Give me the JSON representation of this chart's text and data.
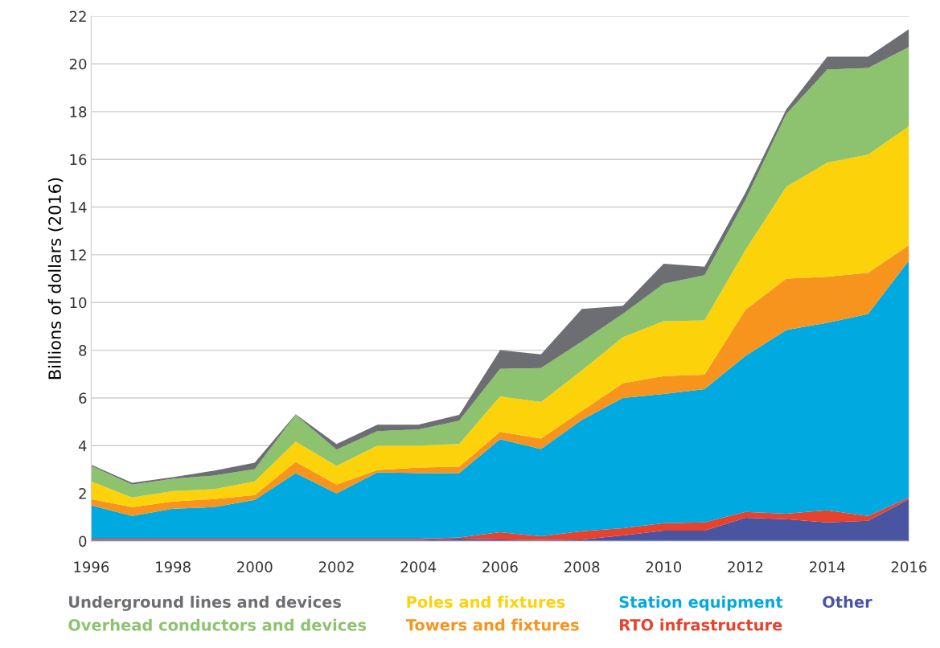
{
  "chart_data": {
    "type": "area",
    "stacked": true,
    "ylabel": "Billions of dollars (2016)",
    "x": [
      1996,
      1997,
      1998,
      1999,
      2000,
      2001,
      2002,
      2003,
      2004,
      2005,
      2006,
      2007,
      2008,
      2009,
      2010,
      2011,
      2012,
      2013,
      2014,
      2015,
      2016
    ],
    "xlim": [
      1996,
      2016
    ],
    "xticks": [
      1996,
      1998,
      2000,
      2002,
      2004,
      2006,
      2008,
      2010,
      2012,
      2014,
      2016
    ],
    "ylim": [
      0,
      22
    ],
    "yticks": [
      0,
      2,
      4,
      6,
      8,
      10,
      12,
      14,
      16,
      18,
      20,
      22
    ],
    "grid": "y",
    "legend": "bottom",
    "series": [
      {
        "name": "Other",
        "color": "#4a55a2",
        "values": [
          0.05,
          0.05,
          0.05,
          0.05,
          0.05,
          0.05,
          0.05,
          0.05,
          0.05,
          0.1,
          0.07,
          0.05,
          0.07,
          0.24,
          0.44,
          0.44,
          0.98,
          0.92,
          0.78,
          0.85,
          1.76
        ]
      },
      {
        "name": "RTO infrastructure",
        "color": "#e8412c",
        "values": [
          0.05,
          0.05,
          0.05,
          0.05,
          0.05,
          0.05,
          0.05,
          0.05,
          0.05,
          0.05,
          0.3,
          0.15,
          0.34,
          0.3,
          0.31,
          0.34,
          0.24,
          0.23,
          0.51,
          0.2,
          0.07
        ]
      },
      {
        "name": "Station equipment",
        "color": "#00a9e0",
        "values": [
          1.4,
          0.95,
          1.26,
          1.32,
          1.63,
          2.75,
          1.9,
          2.78,
          2.75,
          2.7,
          3.9,
          3.66,
          4.67,
          5.46,
          5.42,
          5.59,
          6.54,
          7.7,
          7.86,
          8.47,
          9.93
        ]
      },
      {
        "name": "Towers and fixtures",
        "color": "#f7941d",
        "values": [
          0.26,
          0.37,
          0.3,
          0.34,
          0.2,
          0.47,
          0.37,
          0.1,
          0.23,
          0.27,
          0.31,
          0.44,
          0.38,
          0.61,
          0.75,
          0.61,
          1.94,
          2.15,
          1.93,
          1.73,
          0.64
        ]
      },
      {
        "name": "Poles and fixtures",
        "color": "#fcd20a",
        "values": [
          0.74,
          0.41,
          0.44,
          0.41,
          0.57,
          0.85,
          0.78,
          1.02,
          0.92,
          0.95,
          1.49,
          1.53,
          1.69,
          1.93,
          2.3,
          2.27,
          2.5,
          3.85,
          4.78,
          4.95,
          4.99
        ]
      },
      {
        "name": "Overhead conductors and devices",
        "color": "#8dc26f",
        "values": [
          0.65,
          0.54,
          0.51,
          0.58,
          0.52,
          1.12,
          0.68,
          0.61,
          0.68,
          0.98,
          1.15,
          1.42,
          1.22,
          0.98,
          1.56,
          1.9,
          2.1,
          3.05,
          3.9,
          3.63,
          3.32
        ]
      },
      {
        "name": "Underground lines and devices",
        "color": "#6d6e71",
        "values": [
          0.05,
          0.07,
          0.07,
          0.2,
          0.27,
          0.03,
          0.24,
          0.27,
          0.2,
          0.24,
          0.78,
          0.58,
          1.36,
          0.34,
          0.85,
          0.35,
          0.3,
          0.2,
          0.54,
          0.47,
          0.75
        ]
      }
    ]
  }
}
